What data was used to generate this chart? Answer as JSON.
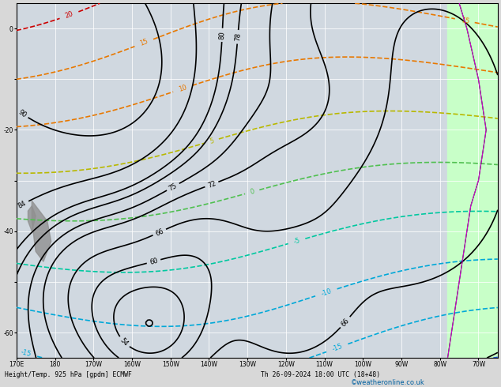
{
  "title_left": "Height/Temp. 925 hPa [gpdm] ECMWF",
  "title_right": "Th 26-09-2024 18:00 UTC (18+48)",
  "watermark": "©weatheronline.co.uk",
  "bg_color": "#d8d8d8",
  "plot_bg": "#d0d8e0",
  "grid_color": "white",
  "height_color": "#000000",
  "temp_colors": {
    "25": "#cc0000",
    "20": "#cc0000",
    "15": "#e87800",
    "10": "#e87800",
    "5": "#b8b800",
    "0": "#50c050",
    "-5": "#00c8a0",
    "-10": "#00a8d8",
    "-15": "#00a8d8",
    "-20": "#2050c8",
    "-25": "#2050c8",
    "-30": "#8000c8"
  },
  "right_strip_color": "#c8ffc8"
}
